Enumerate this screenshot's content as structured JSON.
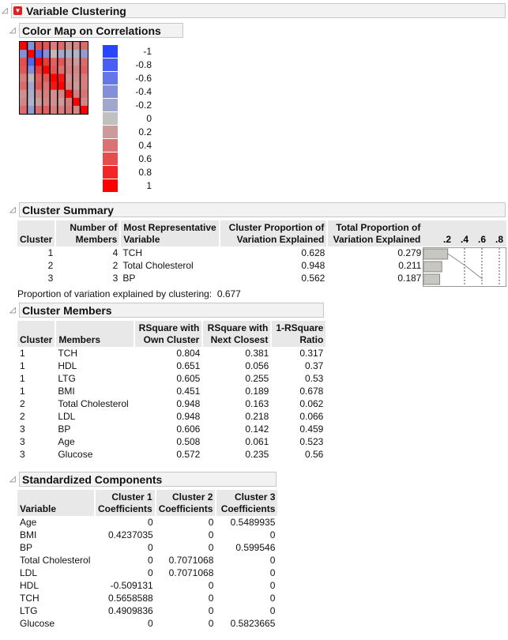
{
  "report": {
    "title": "Variable Clustering",
    "menu_icon": "red-dropdown-triangle"
  },
  "color_map": {
    "title": "Color Map on Correlations",
    "matrix": [
      [
        1,
        -0.4,
        0.6,
        0.55,
        0.35,
        0.45,
        0.25,
        0.3,
        0.45
      ],
      [
        -0.4,
        1,
        -0.75,
        -0.4,
        0.05,
        -0.2,
        -0.15,
        -0.1,
        -0.3
      ],
      [
        0.6,
        -0.75,
        1,
        0.7,
        0.5,
        0.55,
        0.3,
        0.2,
        0.45
      ],
      [
        0.55,
        -0.4,
        0.7,
        1,
        0.55,
        0.4,
        0.35,
        0.3,
        0.5
      ],
      [
        0.35,
        0.05,
        0.5,
        0.55,
        1,
        0.9,
        0.25,
        0.25,
        0.35
      ],
      [
        0.45,
        -0.2,
        0.55,
        0.4,
        0.9,
        1,
        0.3,
        0.2,
        0.35
      ],
      [
        0.25,
        -0.15,
        0.3,
        0.35,
        0.25,
        0.3,
        1,
        0.35,
        0.4
      ],
      [
        0.3,
        -0.1,
        0.2,
        0.3,
        0.25,
        0.2,
        0.35,
        1,
        0.3
      ],
      [
        0.45,
        -0.3,
        0.45,
        0.5,
        0.35,
        0.35,
        0.4,
        0.3,
        1
      ]
    ],
    "legend_labels": [
      "-1",
      "-0.8",
      "-0.6",
      "-0.4",
      "-0.2",
      "0",
      "0.2",
      "0.4",
      "0.6",
      "0.8",
      "1"
    ],
    "colors": {
      "negative": "#2b45ff",
      "zero": "#c0c0c0",
      "positive": "#ff0000"
    }
  },
  "cluster_summary": {
    "title": "Cluster Summary",
    "headers": [
      "Cluster",
      "Number of Members",
      "Most Representative Variable",
      "Cluster Proportion of Variation Explained",
      "Total Proportion of Variation Explained"
    ],
    "rows": [
      [
        "1",
        "4",
        "TCH",
        "0.628",
        "0.279"
      ],
      [
        "2",
        "2",
        "Total Cholesterol",
        "0.948",
        "0.211"
      ],
      [
        "3",
        "3",
        "BP",
        "0.562",
        "0.187"
      ]
    ],
    "chart": {
      "axis_ticks": [
        ".2",
        ".4",
        ".6",
        ".8"
      ],
      "values": [
        0.279,
        0.211,
        0.187
      ],
      "cumulative": [
        0.279,
        0.49,
        0.677
      ],
      "range": [
        0,
        0.95
      ]
    },
    "note_label": "Proportion of variation explained by clustering:",
    "note_value": "0.677"
  },
  "cluster_members": {
    "title": "Cluster Members",
    "headers": [
      "Cluster",
      "Members",
      "RSquare with Own Cluster",
      "RSquare with Next Closest",
      "1-RSquare Ratio"
    ],
    "rows": [
      [
        "1",
        "TCH",
        "0.804",
        "0.381",
        "0.317"
      ],
      [
        "1",
        "HDL",
        "0.651",
        "0.056",
        "0.37"
      ],
      [
        "1",
        "LTG",
        "0.605",
        "0.255",
        "0.53"
      ],
      [
        "1",
        "BMI",
        "0.451",
        "0.189",
        "0.678"
      ],
      [
        "2",
        "Total Cholesterol",
        "0.948",
        "0.163",
        "0.062"
      ],
      [
        "2",
        "LDL",
        "0.948",
        "0.218",
        "0.066"
      ],
      [
        "3",
        "BP",
        "0.606",
        "0.142",
        "0.459"
      ],
      [
        "3",
        "Age",
        "0.508",
        "0.061",
        "0.523"
      ],
      [
        "3",
        "Glucose",
        "0.572",
        "0.235",
        "0.56"
      ]
    ]
  },
  "standardized_components": {
    "title": "Standardized Components",
    "headers": [
      "Variable",
      "Cluster 1 Coefficients",
      "Cluster 2 Coefficients",
      "Cluster 3 Coefficients"
    ],
    "rows": [
      [
        "Age",
        "0",
        "0",
        "0.5489935"
      ],
      [
        "BMI",
        "0.4237035",
        "0",
        "0"
      ],
      [
        "BP",
        "0",
        "0",
        "0.599546"
      ],
      [
        "Total Cholesterol",
        "0",
        "0.7071068",
        "0"
      ],
      [
        "LDL",
        "0",
        "0.7071068",
        "0"
      ],
      [
        "HDL",
        "-0.509131",
        "0",
        "0"
      ],
      [
        "TCH",
        "0.5658588",
        "0",
        "0"
      ],
      [
        "LTG",
        "0.4909836",
        "0",
        "0"
      ],
      [
        "Glucose",
        "0",
        "0",
        "0.5823665"
      ]
    ]
  }
}
